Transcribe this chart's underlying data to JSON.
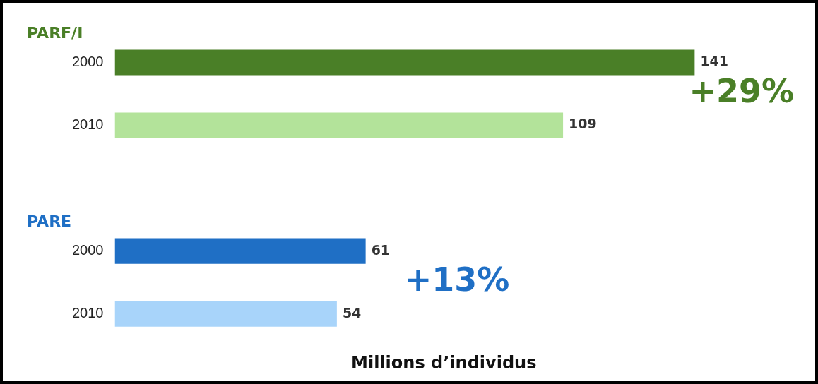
{
  "chart_data": {
    "type": "bar",
    "orientation": "horizontal",
    "xlabel": "Millions d’individus",
    "categories": [
      "2000",
      "2010",
      null,
      "2000",
      "2010"
    ],
    "values": [
      141,
      109,
      null,
      61,
      54
    ],
    "colors": [
      "#4a7f27",
      "#b3e39a",
      "#ffffff",
      "#1f6fc5",
      "#a8d4fa"
    ],
    "data_labels": true,
    "tick_labels": "y",
    "annotations": [
      "PARF/I",
      "PARE",
      "+29%",
      "+13%"
    ]
  }
}
